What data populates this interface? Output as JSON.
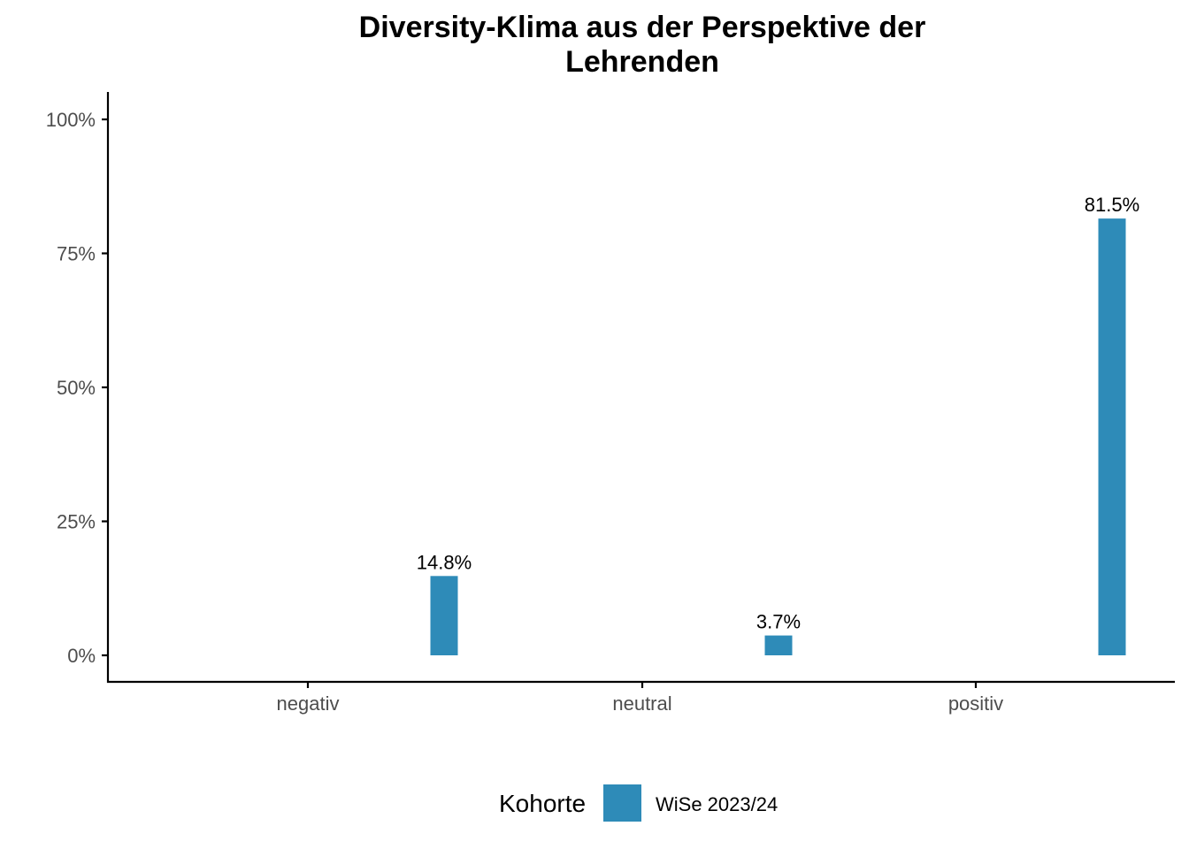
{
  "chart_data": {
    "type": "bar",
    "title_lines": [
      "Diversity-Klima aus der Perspektive der",
      "Lehrenden"
    ],
    "xlabel": "",
    "ylabel": "",
    "categories": [
      "negativ",
      "neutral",
      "positiv"
    ],
    "y_ticks": [
      0,
      25,
      50,
      75,
      100
    ],
    "y_tick_labels": [
      "0%",
      "25%",
      "50%",
      "75%",
      "100%"
    ],
    "ylim": [
      0,
      100
    ],
    "series": [
      {
        "name": "WiSe 2023/24",
        "color": "#2e8bb8",
        "values": [
          14.8,
          3.7,
          81.5
        ],
        "labels": [
          "14.8%",
          "3.7%",
          "81.5%"
        ]
      }
    ],
    "legend": {
      "title": "Kohorte",
      "position": "bottom"
    },
    "grid": false
  }
}
